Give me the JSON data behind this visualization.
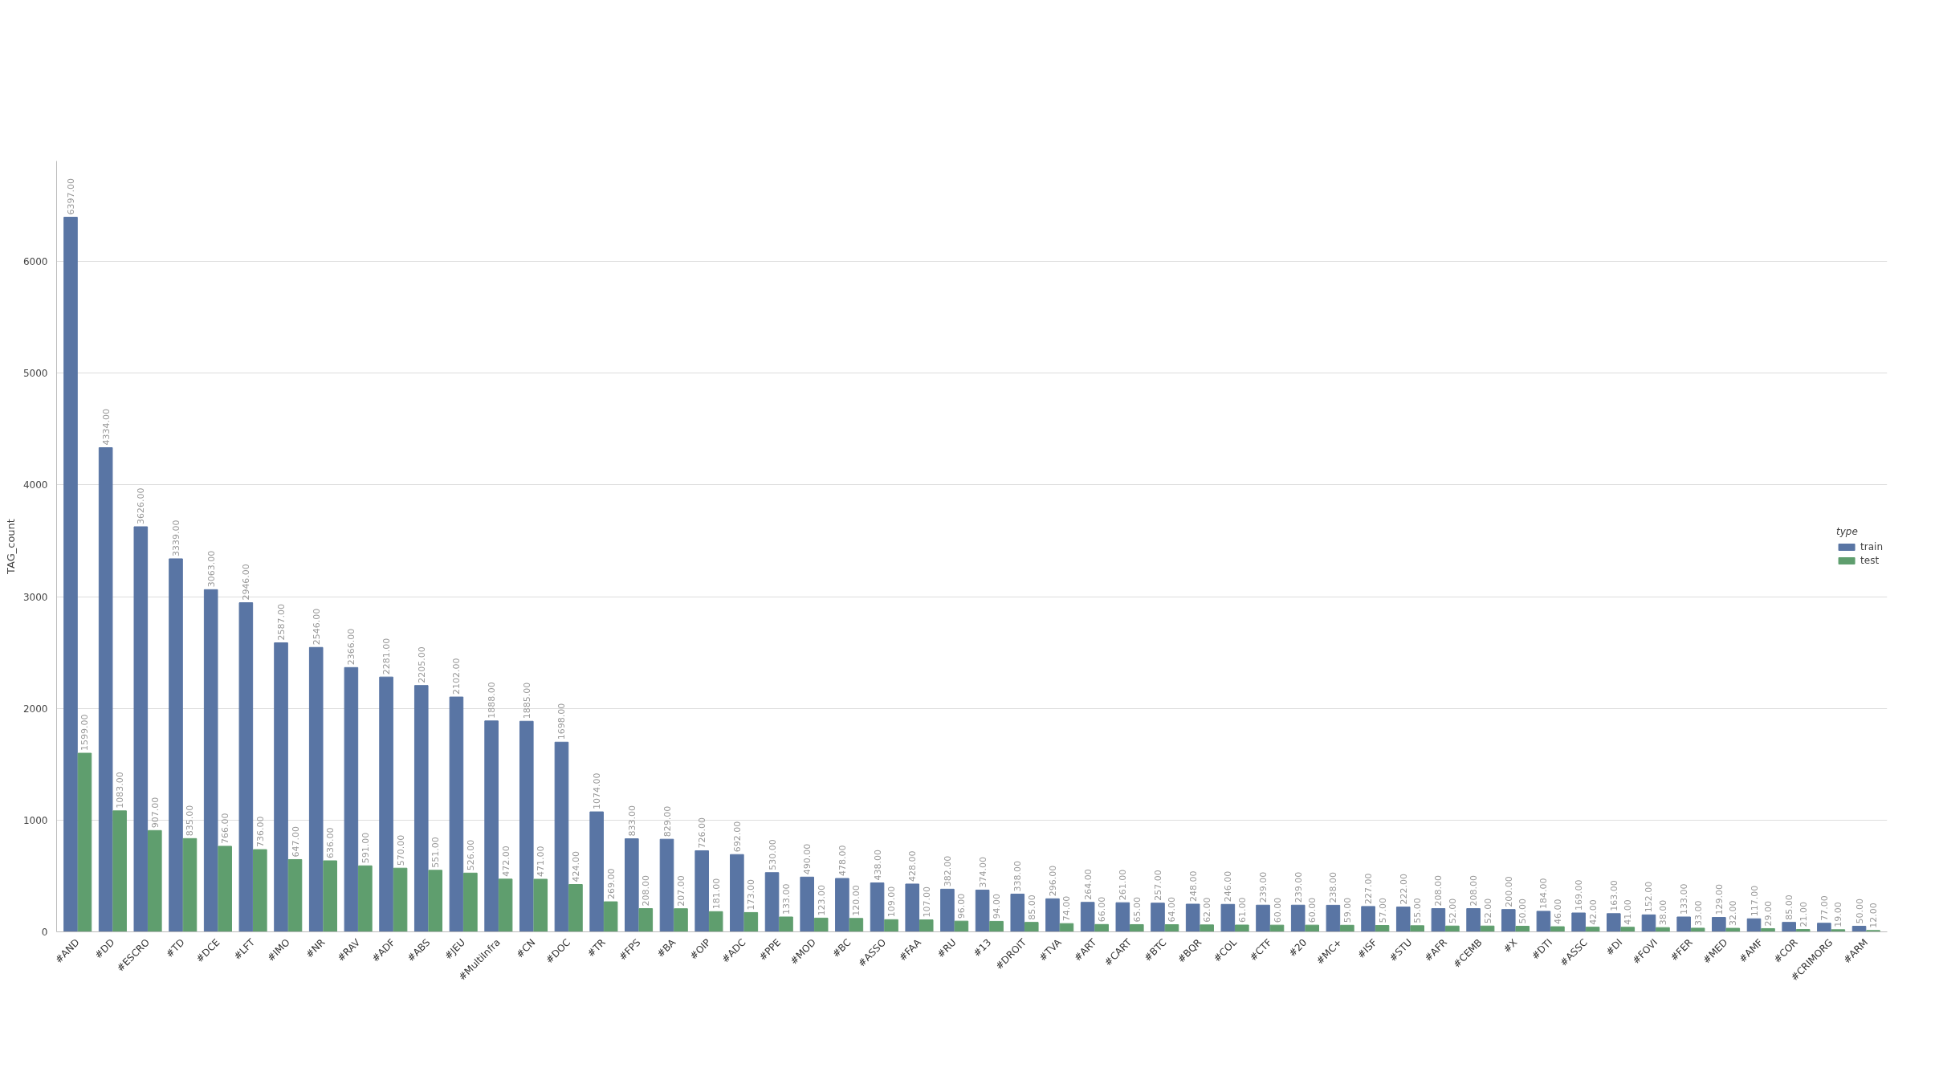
{
  "chart_data": {
    "type": "bar",
    "ylabel": "TAG_count",
    "legend_title": "type",
    "categories": [
      "#AND",
      "#DD",
      "#ESCRO",
      "#TD",
      "#DCE",
      "#LFT",
      "#IMO",
      "#NR",
      "#RAV",
      "#ADF",
      "#ABS",
      "#JEU",
      "#MultiInfra",
      "#CN",
      "#DOC",
      "#TR",
      "#FPS",
      "#BA",
      "#OIP",
      "#ADC",
      "#PPE",
      "#MOD",
      "#BC",
      "#ASSO",
      "#FAA",
      "#RU",
      "#13",
      "#DROIT",
      "#TVA",
      "#ART",
      "#CART",
      "#BTC",
      "#BQR",
      "#COL",
      "#CTF",
      "#20",
      "#MC+",
      "#ISF",
      "#STU",
      "#AFR",
      "#CEMB",
      "#X",
      "#DTI",
      "#ASSC",
      "#DI",
      "#FOVI",
      "#FER",
      "#MED",
      "#AMF",
      "#COR",
      "#CRIMORG",
      "#ARM"
    ],
    "series": [
      {
        "name": "train",
        "color": "#5975a4",
        "values": [
          6397,
          4334,
          3626,
          3339,
          3063,
          2946,
          2587,
          2546,
          2366,
          2281,
          2205,
          2102,
          1888,
          1885,
          1698,
          1074,
          833,
          829,
          726,
          692,
          530,
          490,
          478,
          438,
          428,
          382,
          374,
          338,
          296,
          264,
          261,
          257,
          248,
          246,
          239,
          239,
          238,
          227,
          222,
          208,
          208,
          200,
          184,
          169,
          163,
          152,
          133,
          129,
          117,
          85,
          77,
          50
        ],
        "value_labels": [
          "6397.00",
          "4334.00",
          "3626.00",
          "3339.00",
          "3063.00",
          "2946.00",
          "2587.00",
          "2546.00",
          "2366.00",
          "2281.00",
          "2205.00",
          "2102.00",
          "1888.00",
          "1885.00",
          "1698.00",
          "1074.00",
          "833.00",
          "829.00",
          "726.00",
          "692.00",
          "530.00",
          "490.00",
          "478.00",
          "438.00",
          "428.00",
          "382.00",
          "374.00",
          "338.00",
          "296.00",
          "264.00",
          "261.00",
          "257.00",
          "248.00",
          "246.00",
          "239.00",
          "239.00",
          "238.00",
          "227.00",
          "222.00",
          "208.00",
          "208.00",
          "200.00",
          "184.00",
          "169.00",
          "163.00",
          "152.00",
          "133.00",
          "129.00",
          "117.00",
          "85.00",
          "77.00",
          "50.00"
        ]
      },
      {
        "name": "test",
        "color": "#5f9e6e",
        "values": [
          1599,
          1083,
          907,
          835,
          766,
          736,
          647,
          636,
          591,
          570,
          551,
          526,
          472,
          471,
          424,
          269,
          208,
          207,
          181,
          173,
          133,
          123,
          120,
          109,
          107,
          96,
          94,
          85,
          74,
          66,
          65,
          64,
          62,
          61,
          60,
          60,
          59,
          57,
          55,
          52,
          52,
          50,
          46,
          42,
          41,
          38,
          33,
          32,
          29,
          21,
          19,
          12
        ],
        "value_labels": [
          "1599.00",
          "1083.00",
          "907.00",
          "835.00",
          "766.00",
          "736.00",
          "647.00",
          "636.00",
          "591.00",
          "570.00",
          "551.00",
          "526.00",
          "472.00",
          "471.00",
          "424.00",
          "269.00",
          "208.00",
          "207.00",
          "181.00",
          "173.00",
          "133.00",
          "123.00",
          "120.00",
          "109.00",
          "107.00",
          "96.00",
          "94.00",
          "85.00",
          "74.00",
          "66.00",
          "65.00",
          "64.00",
          "62.00",
          "61.00",
          "60.00",
          "60.00",
          "59.00",
          "57.00",
          "55.00",
          "52.00",
          "52.00",
          "50.00",
          "46.00",
          "42.00",
          "41.00",
          "38.00",
          "33.00",
          "32.00",
          "29.00",
          "21.00",
          "19.00",
          "12.00"
        ]
      }
    ],
    "ylim": [
      0,
      6900
    ],
    "yticks": [
      0,
      1000,
      2000,
      3000,
      4000,
      5000,
      6000
    ],
    "grid": "y",
    "legend": "right"
  }
}
